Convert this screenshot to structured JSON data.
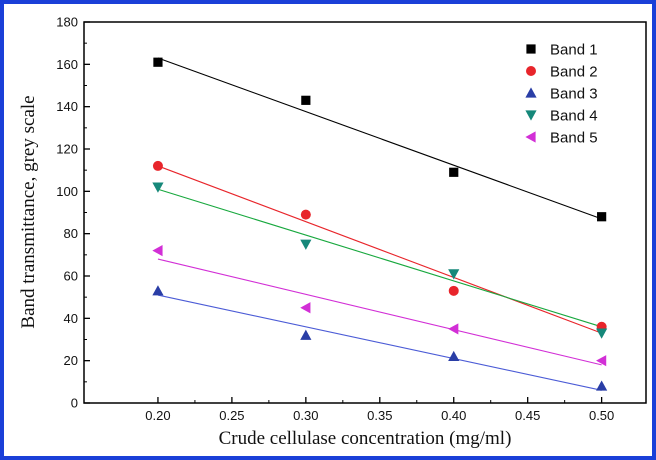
{
  "frame_color": "#1a3fd8",
  "chart_data": {
    "type": "scatter",
    "title": "",
    "xlabel": "Crude cellulase concentration (mg/ml)",
    "ylabel": "Band transmittance, grey scale",
    "xlim": [
      0.15,
      0.53
    ],
    "ylim": [
      0,
      180
    ],
    "xticks": [
      0.2,
      0.25,
      0.3,
      0.35,
      0.4,
      0.45,
      0.5
    ],
    "xtick_labels": [
      "0.20",
      "0.25",
      "0.30",
      "0.35",
      "0.40",
      "0.45",
      "0.50"
    ],
    "yticks": [
      0,
      20,
      40,
      60,
      80,
      100,
      120,
      140,
      160,
      180
    ],
    "ytick_labels": [
      "0",
      "20",
      "40",
      "60",
      "80",
      "100",
      "120",
      "140",
      "160",
      "180"
    ],
    "grid": false,
    "legend_position": "top-right",
    "x": [
      0.2,
      0.3,
      0.4,
      0.5
    ],
    "series": [
      {
        "name": "Band 1",
        "marker": "square",
        "color": "#000000",
        "line_color": "#000000",
        "values": [
          161,
          143,
          109,
          88
        ],
        "fit": [
          [
            0.2,
            163
          ],
          [
            0.5,
            87
          ]
        ]
      },
      {
        "name": "Band 2",
        "marker": "circle",
        "color": "#e8252b",
        "line_color": "#e8252b",
        "values": [
          112,
          89,
          53,
          36
        ],
        "fit": [
          [
            0.2,
            112
          ],
          [
            0.5,
            33
          ]
        ]
      },
      {
        "name": "Band 3",
        "marker": "triangle-up",
        "color": "#2a3ea6",
        "line_color": "#4b5bd6",
        "values": [
          53,
          32,
          22,
          8
        ],
        "fit": [
          [
            0.2,
            51
          ],
          [
            0.5,
            6
          ]
        ]
      },
      {
        "name": "Band 4",
        "marker": "triangle-down",
        "color": "#16887a",
        "line_color": "#18a83e",
        "values": [
          102,
          75,
          61,
          33
        ],
        "fit": [
          [
            0.2,
            101
          ],
          [
            0.5,
            36
          ]
        ]
      },
      {
        "name": "Band 5",
        "marker": "triangle-left",
        "color": "#d22fd6",
        "line_color": "#d22fd6",
        "values": [
          72,
          45,
          35,
          20
        ],
        "fit": [
          [
            0.2,
            68
          ],
          [
            0.5,
            18
          ]
        ]
      }
    ]
  }
}
